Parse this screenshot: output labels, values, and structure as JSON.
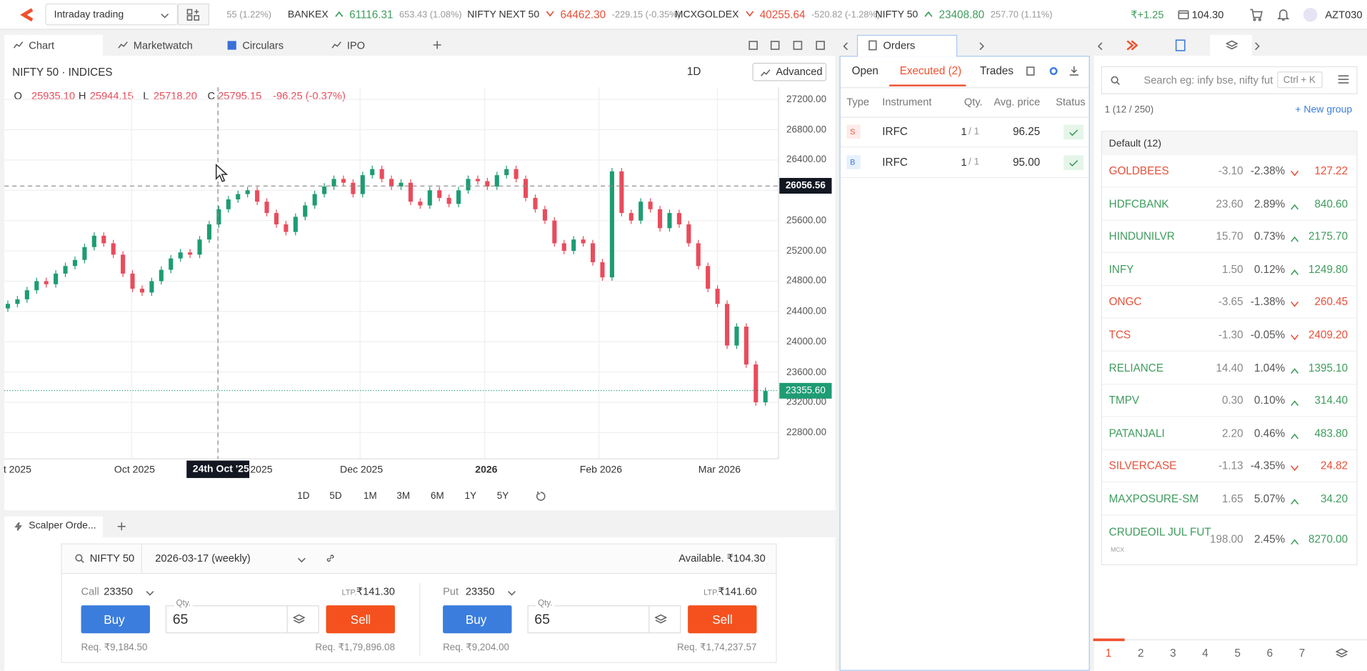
{
  "topbar": {
    "mode": "Intraday trading",
    "tickers": [
      {
        "change": "55 (1.22%)"
      },
      {
        "name": "BANKEX",
        "value": "61116.31",
        "change": "653.43 (1.08%)"
      },
      {
        "name": "NIFTY NEXT 50",
        "value": "64462.30",
        "change": "-229.15 (-0.35%)"
      },
      {
        "name": "MCXGOLDEX",
        "value": "40255.64",
        "change": "-520.82 (-1.28%)"
      },
      {
        "name": "NIFTY 50",
        "value": "23408.80",
        "change": "257.70 (1.11%)"
      }
    ],
    "pnl": "₹+1.25",
    "funds": "104.30",
    "user": "AZT030"
  },
  "tabs": [
    "Chart",
    "Marketwatch",
    "Circulars",
    "IPO"
  ],
  "chart": {
    "symbol": "NIFTY 50 · INDICES",
    "interval": "1D",
    "advanced": "Advanced",
    "ohlc": {
      "o_label": "O",
      "o": "25935.10",
      "h_label": "H",
      "h": "25944.15",
      "l_label": "L",
      "l": "25718.20",
      "c_label": "C",
      "c": "25795.15",
      "change": "-96.25 (-0.37%)"
    },
    "ylim": [
      22454,
      27361
    ],
    "yticks": [
      {
        "value": 27200,
        "label": "27200.00"
      },
      {
        "value": 26800,
        "label": "26800.00"
      },
      {
        "value": 26400,
        "label": "26400.00"
      },
      {
        "value": 26000,
        "label": "26000.00"
      },
      {
        "value": 25600,
        "label": "25600.00"
      },
      {
        "value": 25200,
        "label": "25200.00"
      },
      {
        "value": 24800,
        "label": "24800.00"
      },
      {
        "value": 24400,
        "label": "24400.00"
      },
      {
        "value": 24000,
        "label": "24000.00"
      },
      {
        "value": 23600,
        "label": "23600.00"
      },
      {
        "value": 23200,
        "label": "23200.00"
      },
      {
        "value": 22800,
        "label": "22800.00"
      }
    ],
    "crosshair": {
      "value": 26056.56,
      "label": "26056.56",
      "date": "24th Oct '25"
    },
    "last": {
      "value": 23355.6,
      "label": "23355.60"
    },
    "xlabels": [
      "t 2025",
      "Oct 2025",
      "2025",
      "Dec 2025",
      "2026",
      "Feb 2026",
      "Mar 2026"
    ],
    "closes": [
      24500,
      24560,
      24680,
      24800,
      24760,
      24900,
      25000,
      25080,
      25250,
      25400,
      25300,
      25150,
      24900,
      24700,
      24650,
      24800,
      24950,
      25100,
      25180,
      25150,
      25350,
      25550,
      25750,
      25880,
      25950,
      26000,
      25850,
      25700,
      25550,
      25450,
      25650,
      25800,
      25950,
      26050,
      26150,
      26100,
      25950,
      26200,
      26280,
      26150,
      26050,
      26100,
      25850,
      25800,
      26000,
      25900,
      25820,
      26000,
      26150,
      26120,
      26050,
      26200,
      26280,
      26150,
      25900,
      25750,
      25600,
      25300,
      25200,
      25350,
      25300,
      25050,
      24850,
      26250,
      25700,
      25600,
      25850,
      25750,
      25500,
      25700,
      25550,
      25300,
      25000,
      24700,
      24500,
      23950,
      24200,
      23700,
      23200,
      23350
    ],
    "ranges": [
      "1D",
      "5D",
      "1M",
      "3M",
      "6M",
      "1Y",
      "5Y"
    ]
  },
  "scalper": {
    "tab": "Scalper Orde...",
    "symbol": "NIFTY 50",
    "expiry": "2026-03-17 (weekly)",
    "available": "Available. ₹104.30",
    "legs": [
      {
        "side": "Call",
        "strike": "23350",
        "ltp_label": "LTP.",
        "ltp": "₹141.30",
        "qty_label": "Qty.",
        "qty": "65",
        "buy": "Buy",
        "sell": "Sell",
        "req_buy": "Req. ₹9,184.50",
        "req_sell": "Req. ₹1,79,896.08"
      },
      {
        "side": "Put",
        "strike": "23350",
        "ltp_label": "LTP.",
        "ltp": "₹141.60",
        "qty_label": "Qty.",
        "qty": "65",
        "buy": "Buy",
        "sell": "Sell",
        "req_buy": "Req. ₹9,204.00",
        "req_sell": "Req. ₹1,74,237.57"
      }
    ]
  },
  "orders": {
    "tab": "Orders",
    "subtabs": [
      "Open",
      "Executed (2)",
      "Trades"
    ],
    "columns": [
      "Type",
      "Instrument",
      "Qty.",
      "Avg. price",
      "Status"
    ],
    "rows": [
      {
        "type": "S",
        "instrument": "IRFC",
        "qty": "1",
        "qty_total": "/ 1",
        "price": "96.25"
      },
      {
        "type": "B",
        "instrument": "IRFC",
        "qty": "1",
        "qty_total": "/ 1",
        "price": "95.00"
      }
    ]
  },
  "marketwatch": {
    "search": "Search eg: infy bse, nifty fut",
    "shortcut": "Ctrl + K",
    "count": "1 (12 / 250)",
    "new_group": "+ New group",
    "group": "Default (12)",
    "rows": [
      {
        "name": "GOLDBEES",
        "change": "-3.10",
        "pct": "-2.38%",
        "ltp": "127.22"
      },
      {
        "name": "HDFCBANK",
        "change": "23.60",
        "pct": "2.89%",
        "ltp": "840.60"
      },
      {
        "name": "HINDUNILVR",
        "change": "15.70",
        "pct": "0.73%",
        "ltp": "2175.70"
      },
      {
        "name": "INFY",
        "change": "1.50",
        "pct": "0.12%",
        "ltp": "1249.80"
      },
      {
        "name": "ONGC",
        "change": "-3.65",
        "pct": "-1.38%",
        "ltp": "260.45"
      },
      {
        "name": "TCS",
        "change": "-1.30",
        "pct": "-0.05%",
        "ltp": "2409.20"
      },
      {
        "name": "RELIANCE",
        "change": "14.40",
        "pct": "1.04%",
        "ltp": "1395.10"
      },
      {
        "name": "TMPV",
        "change": "0.30",
        "pct": "0.10%",
        "ltp": "314.40"
      },
      {
        "name": "PATANJALI",
        "change": "2.20",
        "pct": "0.46%",
        "ltp": "483.80"
      },
      {
        "name": "SILVERCASE",
        "change": "-1.13",
        "pct": "-4.35%",
        "ltp": "24.82"
      },
      {
        "name": "MAXPOSURE-SM",
        "change": "1.65",
        "pct": "5.07%",
        "ltp": "34.20"
      },
      {
        "name": "CRUDEOIL JUL FUT",
        "exchange": "MCX",
        "change": "198.00",
        "pct": "2.45%",
        "ltp": "8270.00"
      }
    ],
    "pages": [
      "1",
      "2",
      "3",
      "4",
      "5",
      "6",
      "7"
    ]
  }
}
